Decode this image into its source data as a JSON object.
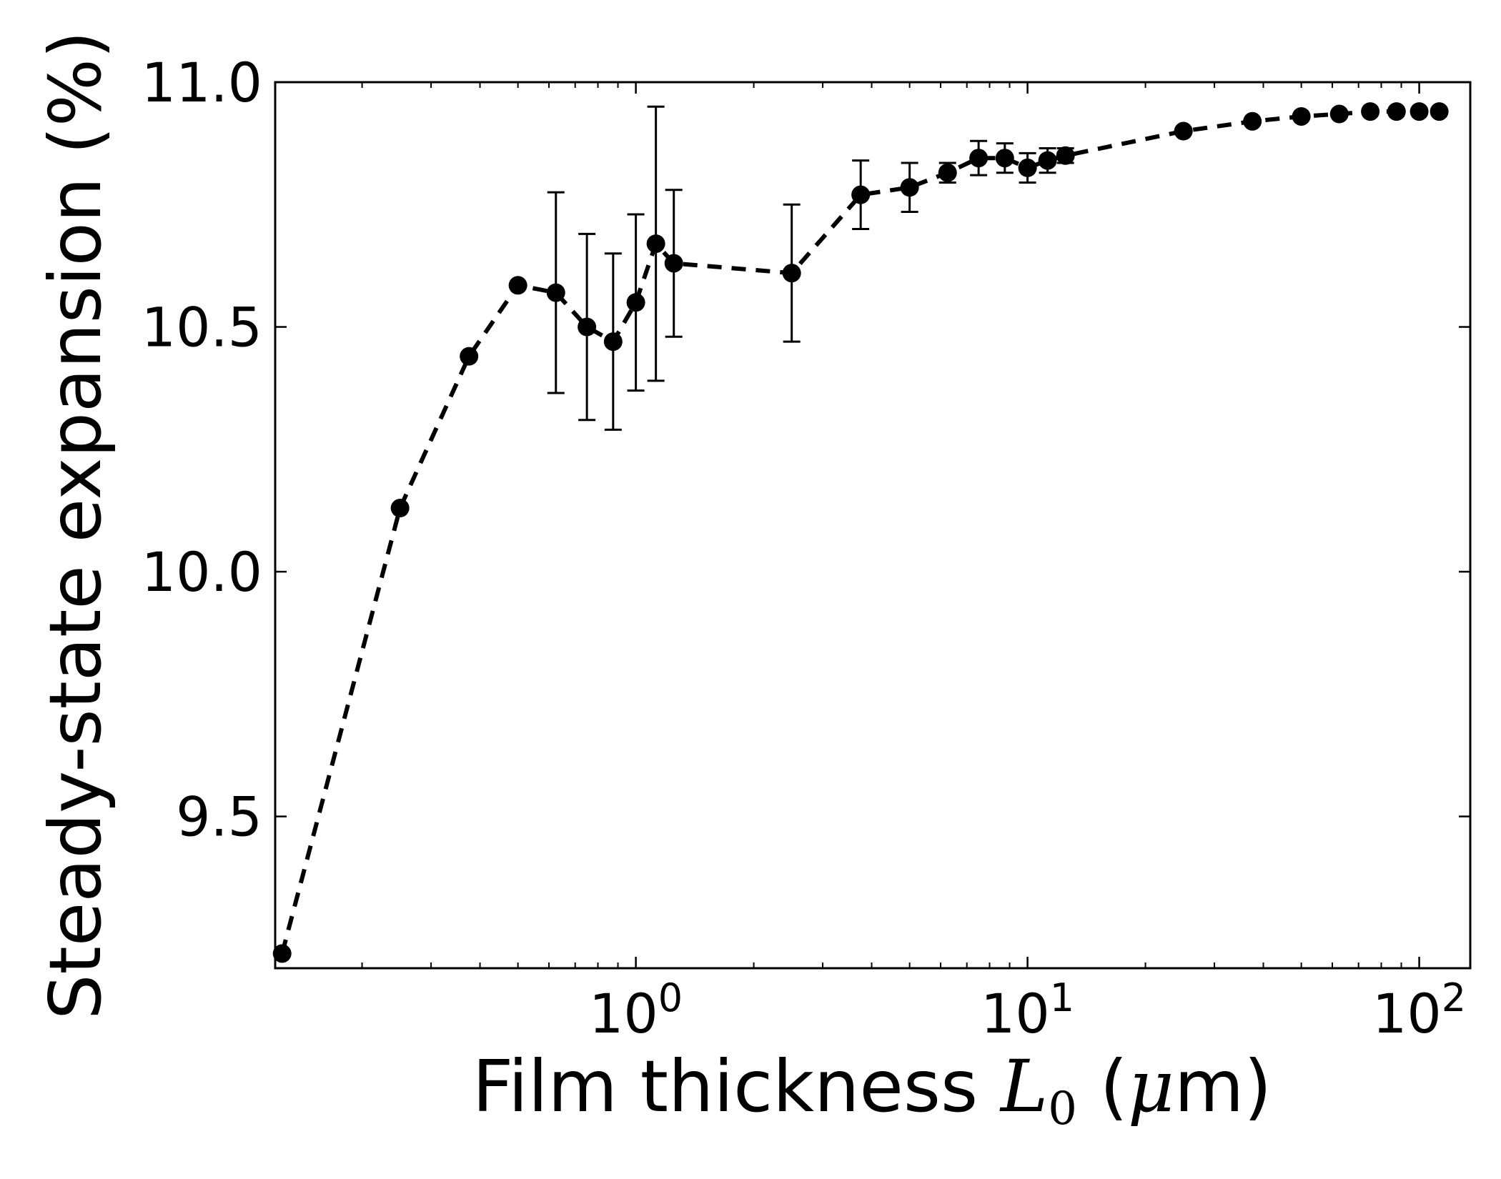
{
  "chart_data": {
    "type": "scatter",
    "xscale": "log",
    "xlim": [
      0.12,
      135
    ],
    "ylim": [
      9.19,
      11.0
    ],
    "xlabel": {
      "prefix": "Film thickness ",
      "symbol": "L",
      "subscript": "0",
      "unit_open": " (",
      "unit_mu": "μ",
      "unit_rest": "m)"
    },
    "ylabel": "Steady-state expansion (%)",
    "y_ticks": [
      {
        "value": 9.5,
        "label": "9.5"
      },
      {
        "value": 10.0,
        "label": "10.0"
      },
      {
        "value": 10.5,
        "label": "10.5"
      },
      {
        "value": 11.0,
        "label": "11.0"
      }
    ],
    "x_major_ticks": [
      {
        "value": 1,
        "base": "10",
        "exp": "0"
      },
      {
        "value": 10,
        "base": "10",
        "exp": "1"
      },
      {
        "value": 100,
        "base": "10",
        "exp": "2"
      }
    ],
    "line_style": "dashed",
    "marker": "filled-circle",
    "color": "#000000",
    "points": [
      {
        "x": 0.125,
        "y": 9.22
      },
      {
        "x": 0.25,
        "y": 10.13
      },
      {
        "x": 0.375,
        "y": 10.44
      },
      {
        "x": 0.5,
        "y": 10.585
      },
      {
        "x": 0.625,
        "y": 10.57,
        "err": 0.205
      },
      {
        "x": 0.75,
        "y": 10.5,
        "err": 0.19
      },
      {
        "x": 0.875,
        "y": 10.47,
        "err": 0.18
      },
      {
        "x": 1.0,
        "y": 10.55,
        "err": 0.18
      },
      {
        "x": 1.125,
        "y": 10.67,
        "err": 0.28
      },
      {
        "x": 1.25,
        "y": 10.63,
        "err": 0.15
      },
      {
        "x": 2.5,
        "y": 10.61,
        "err": 0.14
      },
      {
        "x": 3.75,
        "y": 10.77,
        "err": 0.07
      },
      {
        "x": 5.0,
        "y": 10.785,
        "err": 0.05
      },
      {
        "x": 6.25,
        "y": 10.815,
        "err": 0.02
      },
      {
        "x": 7.5,
        "y": 10.845,
        "err": 0.035
      },
      {
        "x": 8.75,
        "y": 10.845,
        "err": 0.03
      },
      {
        "x": 10.0,
        "y": 10.825,
        "err": 0.03
      },
      {
        "x": 11.25,
        "y": 10.84,
        "err": 0.025
      },
      {
        "x": 12.5,
        "y": 10.85,
        "err": 0.015
      },
      {
        "x": 25,
        "y": 10.9
      },
      {
        "x": 37.5,
        "y": 10.92
      },
      {
        "x": 50,
        "y": 10.93
      },
      {
        "x": 62.5,
        "y": 10.935
      },
      {
        "x": 75,
        "y": 10.94
      },
      {
        "x": 87.5,
        "y": 10.94
      },
      {
        "x": 100,
        "y": 10.94
      },
      {
        "x": 112.5,
        "y": 10.94
      }
    ]
  }
}
